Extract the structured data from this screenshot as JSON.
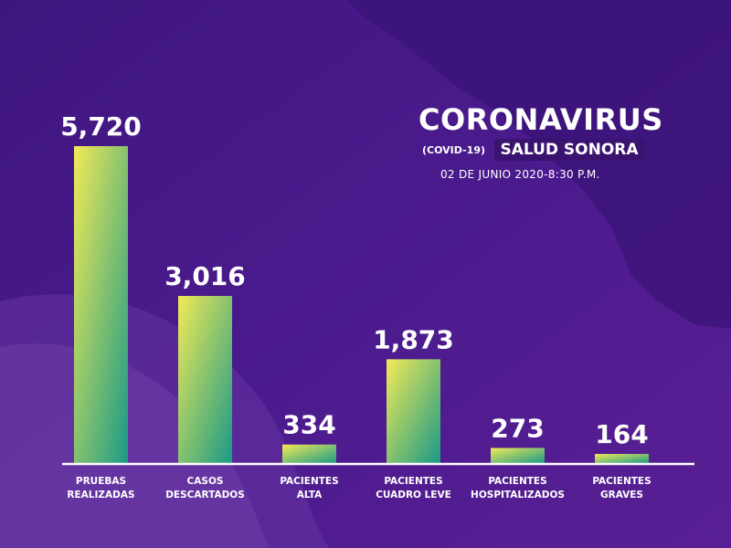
{
  "header": {
    "title": "CORONAVIRUS",
    "subtitle_tag": "(COVID-19)",
    "subtitle": "SALUD SONORA",
    "date": "02 DE JUNIO 2020-8:30 P.M."
  },
  "colors": {
    "background": "#4a1a8c",
    "bar_top_left": "#f2ea57",
    "bar_bottom_right": "#1a9a86",
    "text": "#ffffff"
  },
  "chart_data": {
    "type": "bar",
    "categories": [
      [
        "PRUEBAS",
        "REALIZADAS"
      ],
      [
        "CASOS",
        "DESCARTADOS"
      ],
      [
        "PACIENTES",
        "ALTA"
      ],
      [
        "PACIENTES",
        "CUADRO LEVE"
      ],
      [
        "PACIENTES",
        "HOSPITALIZADOS"
      ],
      [
        "PACIENTES",
        "GRAVES"
      ]
    ],
    "values": [
      5720,
      3016,
      334,
      1873,
      273,
      164
    ],
    "value_labels": [
      "5,720",
      "3,016",
      "334",
      "1,873",
      "273",
      "164"
    ],
    "ylim": [
      0,
      5720
    ],
    "grid": false,
    "legend": "none"
  }
}
